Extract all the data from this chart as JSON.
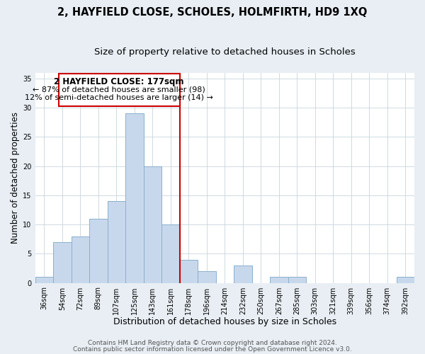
{
  "title1": "2, HAYFIELD CLOSE, SCHOLES, HOLMFIRTH, HD9 1XQ",
  "title2": "Size of property relative to detached houses in Scholes",
  "xlabel": "Distribution of detached houses by size in Scholes",
  "ylabel": "Number of detached properties",
  "bin_labels": [
    "36sqm",
    "54sqm",
    "72sqm",
    "89sqm",
    "107sqm",
    "125sqm",
    "143sqm",
    "161sqm",
    "178sqm",
    "196sqm",
    "214sqm",
    "232sqm",
    "250sqm",
    "267sqm",
    "285sqm",
    "303sqm",
    "321sqm",
    "339sqm",
    "356sqm",
    "374sqm",
    "392sqm"
  ],
  "bar_heights": [
    1,
    7,
    8,
    11,
    14,
    29,
    20,
    10,
    4,
    2,
    0,
    3,
    0,
    1,
    1,
    0,
    0,
    0,
    0,
    0,
    1
  ],
  "bar_color": "#c8d8ec",
  "bar_edge_color": "#8ab0cc",
  "vline_x_idx": 8,
  "vline_color": "#cc0000",
  "annotation_title": "2 HAYFIELD CLOSE: 177sqm",
  "annotation_line1": "← 87% of detached houses are smaller (98)",
  "annotation_line2": "12% of semi-detached houses are larger (14) →",
  "annotation_box_color": "#ffffff",
  "annotation_box_edge": "#cc0000",
  "ylim": [
    0,
    36
  ],
  "yticks": [
    0,
    5,
    10,
    15,
    20,
    25,
    30,
    35
  ],
  "footer1": "Contains HM Land Registry data © Crown copyright and database right 2024.",
  "footer2": "Contains public sector information licensed under the Open Government Licence v3.0.",
  "bg_color": "#e8eef4",
  "plot_bg_color": "#ffffff",
  "grid_color": "#c8d4dc",
  "title1_fontsize": 10.5,
  "title2_fontsize": 9.5,
  "xlabel_fontsize": 9,
  "ylabel_fontsize": 8.5,
  "tick_fontsize": 7,
  "footer_fontsize": 6.5,
  "ann_title_fontsize": 8.5,
  "ann_text_fontsize": 8
}
